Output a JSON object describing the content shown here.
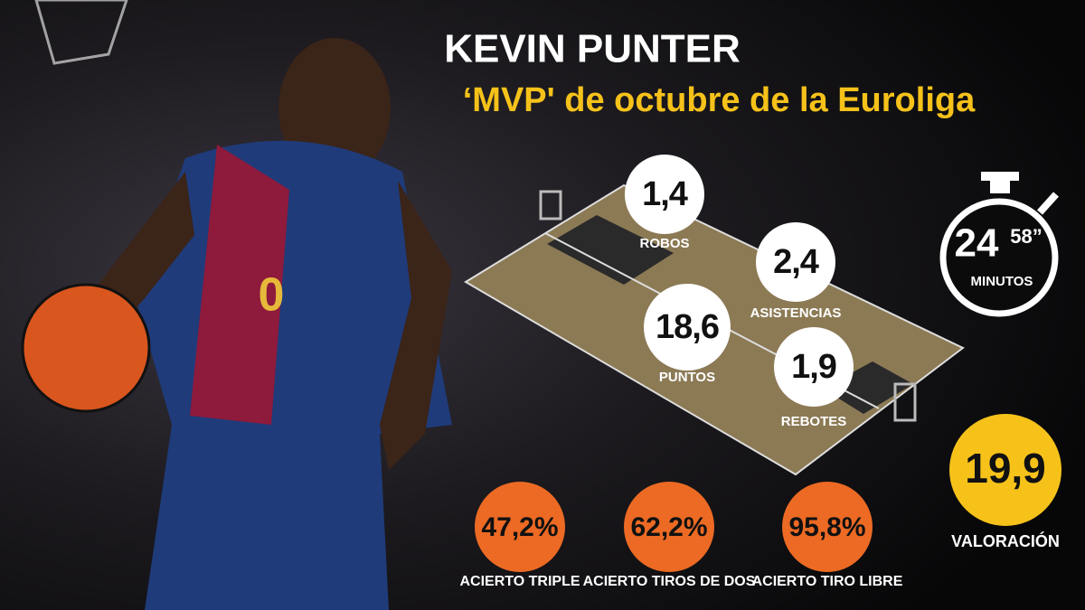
{
  "header": {
    "title": "KEVIN PUNTER",
    "subtitle": "‘MVP' de octubre de la Euroliga"
  },
  "court_stats": [
    {
      "value": "1,4",
      "label": "ROBOS"
    },
    {
      "value": "2,4",
      "label": "ASISTENCIAS"
    },
    {
      "value": "18,6",
      "label": "PUNTOS"
    },
    {
      "value": "1,9",
      "label": "REBOTES"
    }
  ],
  "minutes": {
    "value": "24",
    "seconds": "58”",
    "label": "MINUTOS"
  },
  "rating": {
    "value": "19,9",
    "label": "VALORACIÓN"
  },
  "percentages": [
    {
      "value": "47,2%",
      "label": "ACIERTO TRIPLE"
    },
    {
      "value": "62,2%",
      "label": "ACIERTO TIROS DE DOS"
    },
    {
      "value": "95,8%",
      "label": "ACIERTO TIRO LIBRE"
    }
  ]
}
